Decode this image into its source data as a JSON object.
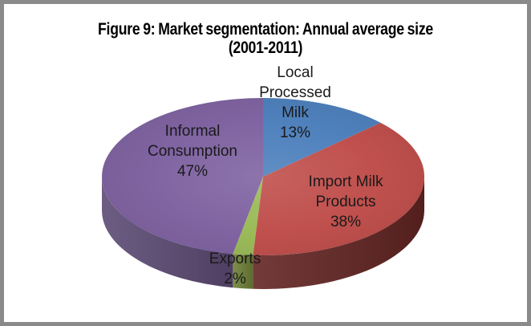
{
  "figure": {
    "background_color": "#ffffff",
    "border_color": "#8a8a8a"
  },
  "title": {
    "line1": "Figure 9: Market segmentation: Annual average size",
    "line2": "(2001-2011)"
  },
  "chart_data": {
    "type": "pie",
    "style": "3d",
    "title": "Figure 9: Market segmentation: Annual average size (2001-2011)",
    "start_angle_deg": 0,
    "direction": "clockwise",
    "legend": "none",
    "label_style": "category name and percentage on slices",
    "segments": [
      {
        "label": "Local Processed Milk",
        "value_pct": 13,
        "color": "#4f81bd",
        "side_color": "#31507a"
      },
      {
        "label": "Import Milk Products",
        "value_pct": 38,
        "color": "#c0504d",
        "side_color": "#632523"
      },
      {
        "label": "Exports",
        "value_pct": 2,
        "color": "#9bbb59",
        "side_color": "#6f8138"
      },
      {
        "label": "Informal Consumption",
        "value_pct": 47,
        "color": "#8064a2",
        "side_color": "#5d4b75"
      }
    ]
  },
  "labels": {
    "local": {
      "lines": [
        "Local",
        "Processed",
        "Milk"
      ],
      "pct": "13%"
    },
    "import": {
      "lines": [
        "Import Milk",
        "Products"
      ],
      "pct": "38%"
    },
    "exports": {
      "lines": [
        "Exports"
      ],
      "pct": "2%"
    },
    "informal": {
      "lines": [
        "Informal",
        "Consumption"
      ],
      "pct": "47%"
    }
  }
}
